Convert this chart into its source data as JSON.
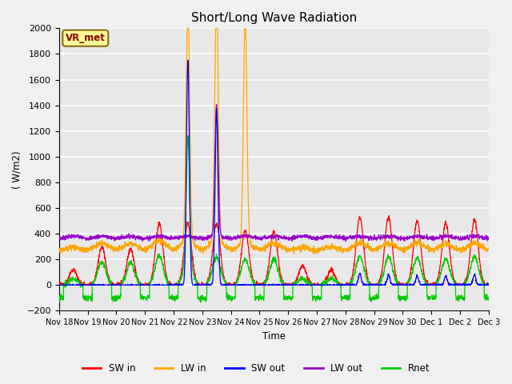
{
  "title": "Short/Long Wave Radiation",
  "xlabel": "Time",
  "ylabel": "( W/m2)",
  "ylim": [
    -200,
    2000
  ],
  "yticks": [
    -200,
    0,
    200,
    400,
    600,
    800,
    1000,
    1200,
    1400,
    1600,
    1800,
    2000
  ],
  "xtick_labels": [
    "Nov 18",
    "Nov 19",
    "Nov 20",
    "Nov 21",
    "Nov 22",
    "Nov 23",
    "Nov 24",
    "Nov 25",
    "Nov 26",
    "Nov 27",
    "Nov 28",
    "Nov 29",
    "Nov 30",
    "Dec 1",
    "Dec 2",
    "Dec 3"
  ],
  "annotation_text": "VR_met",
  "annotation_color": "#8B0000",
  "annotation_bg": "#FFFF99",
  "bg_color": "#E8E8E8",
  "grid_color": "#FFFFFF",
  "colors": {
    "SW_in": "#FF0000",
    "LW_in": "#FFA500",
    "SW_out": "#0000FF",
    "LW_out": "#9900CC",
    "Rnet": "#00CC00"
  },
  "legend_labels": [
    "SW in",
    "LW in",
    "SW out",
    "LW out",
    "Rnet"
  ]
}
